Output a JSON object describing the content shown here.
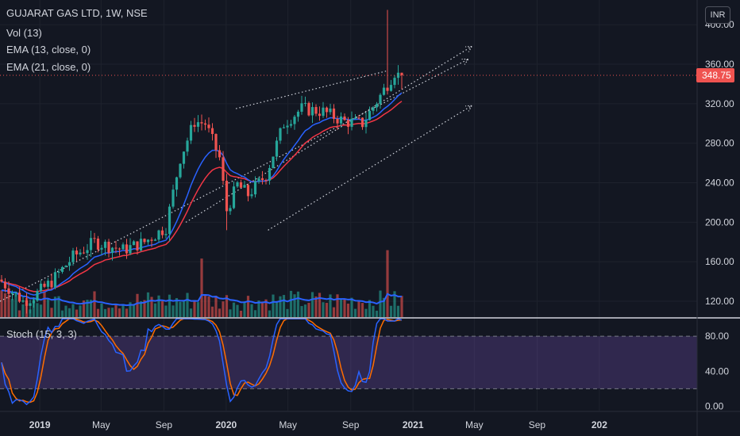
{
  "legend": {
    "symbol": "GUJARAT GAS LTD, 1W, NSE",
    "vol": "Vol (13)",
    "ema13": "EMA (13, close, 0)",
    "ema21": "EMA (21, close, 0)",
    "stoch": "Stoch (15, 3, 3)"
  },
  "currency_button": "INR",
  "price_axis_partial_top": "4",
  "colors": {
    "background": "#131722",
    "up": "#26a69a",
    "down": "#ef5350",
    "ema13": "#2962ff",
    "ema21": "#f23645",
    "vol_ma": "#2962ff",
    "stoch_k": "#2962ff",
    "stoch_d": "#ff6d00",
    "stoch_band": "#7e57c2",
    "last_price_line": "#ef5350"
  },
  "chart_data": [
    {
      "type": "candlestick",
      "title": "GUJARAT GAS LTD, 1W, NSE",
      "interval": "1W",
      "x_labels": [
        "2019",
        "May",
        "Sep",
        "2020",
        "May",
        "Sep",
        "2021",
        "May",
        "Sep",
        "202"
      ],
      "y_ticks": [
        120,
        160,
        200,
        240,
        280,
        320,
        360,
        400
      ],
      "y_tick_labels": [
        "120.00",
        "160.00",
        "200.00",
        "240.00",
        "280.00",
        "320.00",
        "360.00",
        "400.00"
      ],
      "ylim": [
        104,
        425
      ],
      "last_price": 348.75,
      "last_price_label": "348.75",
      "grid": true,
      "trendlines": [
        {
          "from": [
            "2018-10-15",
            120
          ],
          "to": [
            "2021-04-19",
            365
          ],
          "style": "dotted",
          "arrow": true
        },
        {
          "from": [
            "2019-10-14",
            200
          ],
          "to": [
            "2021-04-26",
            378
          ],
          "style": "dotted",
          "arrow": true
        },
        {
          "from": [
            "2020-03-23",
            192
          ],
          "to": [
            "2021-04-26",
            318
          ],
          "style": "dotted",
          "arrow": true
        },
        {
          "from": [
            "2020-01-20",
            315
          ],
          "to": [
            "2020-11-09",
            353
          ],
          "style": "dotted",
          "arrow": false
        }
      ]
    },
    {
      "type": "line",
      "title": "Stoch (15, 3, 3)",
      "y_ticks": [
        0,
        40,
        80
      ],
      "y_tick_labels": [
        "0.00",
        "40.00",
        "80.00"
      ],
      "ylim": [
        -5,
        100
      ],
      "band": [
        20,
        80
      ]
    }
  ]
}
